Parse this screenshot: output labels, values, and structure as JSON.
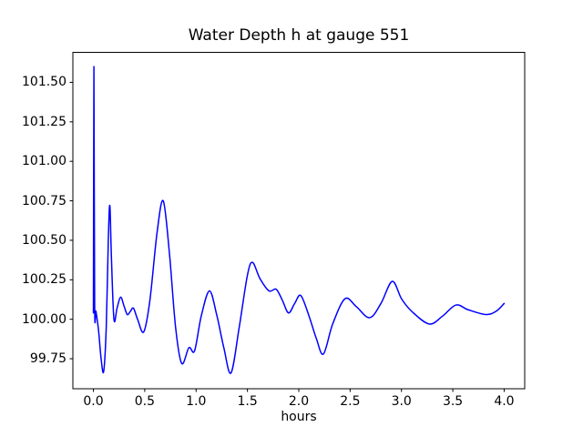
{
  "figure": {
    "background": "#ffffff"
  },
  "chart_data": {
    "type": "line",
    "title": "Water Depth h at gauge 551",
    "xlabel": "hours",
    "ylabel": "",
    "grid": false,
    "legend": null,
    "line_color": "#0000ff",
    "line_width": 1.5,
    "axes_color": "#000000",
    "text_color": "#000000",
    "xlim": [
      -0.2,
      4.2
    ],
    "ylim": [
      99.56,
      101.69
    ],
    "xticks": [
      0.0,
      0.5,
      1.0,
      1.5,
      2.0,
      2.5,
      3.0,
      3.5,
      4.0
    ],
    "xtick_labels": [
      "0.0",
      "0.5",
      "1.0",
      "1.5",
      "2.0",
      "2.5",
      "3.0",
      "3.5",
      "4.0"
    ],
    "yticks": [
      99.75,
      100.0,
      100.25,
      100.5,
      100.75,
      101.0,
      101.25,
      101.5
    ],
    "ytick_labels": [
      "99.75",
      "100.00",
      "100.25",
      "100.50",
      "100.75",
      "101.00",
      "101.25",
      "101.50"
    ],
    "series": [
      {
        "name": "water-depth-h",
        "x": [
          0.0,
          0.005,
          0.012,
          0.025,
          0.05,
          0.075,
          0.1,
          0.125,
          0.145,
          0.16,
          0.175,
          0.2,
          0.23,
          0.265,
          0.3,
          0.33,
          0.36,
          0.39,
          0.43,
          0.49,
          0.55,
          0.62,
          0.68,
          0.74,
          0.8,
          0.86,
          0.93,
          0.985,
          1.05,
          1.13,
          1.2,
          1.27,
          1.34,
          1.42,
          1.5,
          1.55,
          1.62,
          1.71,
          1.78,
          1.84,
          1.9,
          1.96,
          2.02,
          2.1,
          2.17,
          2.24,
          2.33,
          2.45,
          2.56,
          2.69,
          2.8,
          2.91,
          3.0,
          3.1,
          3.27,
          3.4,
          3.53,
          3.65,
          3.82,
          3.92,
          4.0
        ],
        "y": [
          100.04,
          101.6,
          100.1,
          100.05,
          99.93,
          99.75,
          99.67,
          99.95,
          100.5,
          100.72,
          100.4,
          100.0,
          100.07,
          100.14,
          100.08,
          100.03,
          100.05,
          100.07,
          100.0,
          99.92,
          100.12,
          100.55,
          100.75,
          100.42,
          99.95,
          99.72,
          99.82,
          99.8,
          100.02,
          100.18,
          100.03,
          99.82,
          99.66,
          99.95,
          100.28,
          100.36,
          100.26,
          100.18,
          100.19,
          100.12,
          100.04,
          100.1,
          100.15,
          100.02,
          99.88,
          99.78,
          99.97,
          100.13,
          100.08,
          100.01,
          100.1,
          100.24,
          100.13,
          100.05,
          99.97,
          100.02,
          100.09,
          100.06,
          100.03,
          100.05,
          100.1
        ]
      }
    ]
  }
}
